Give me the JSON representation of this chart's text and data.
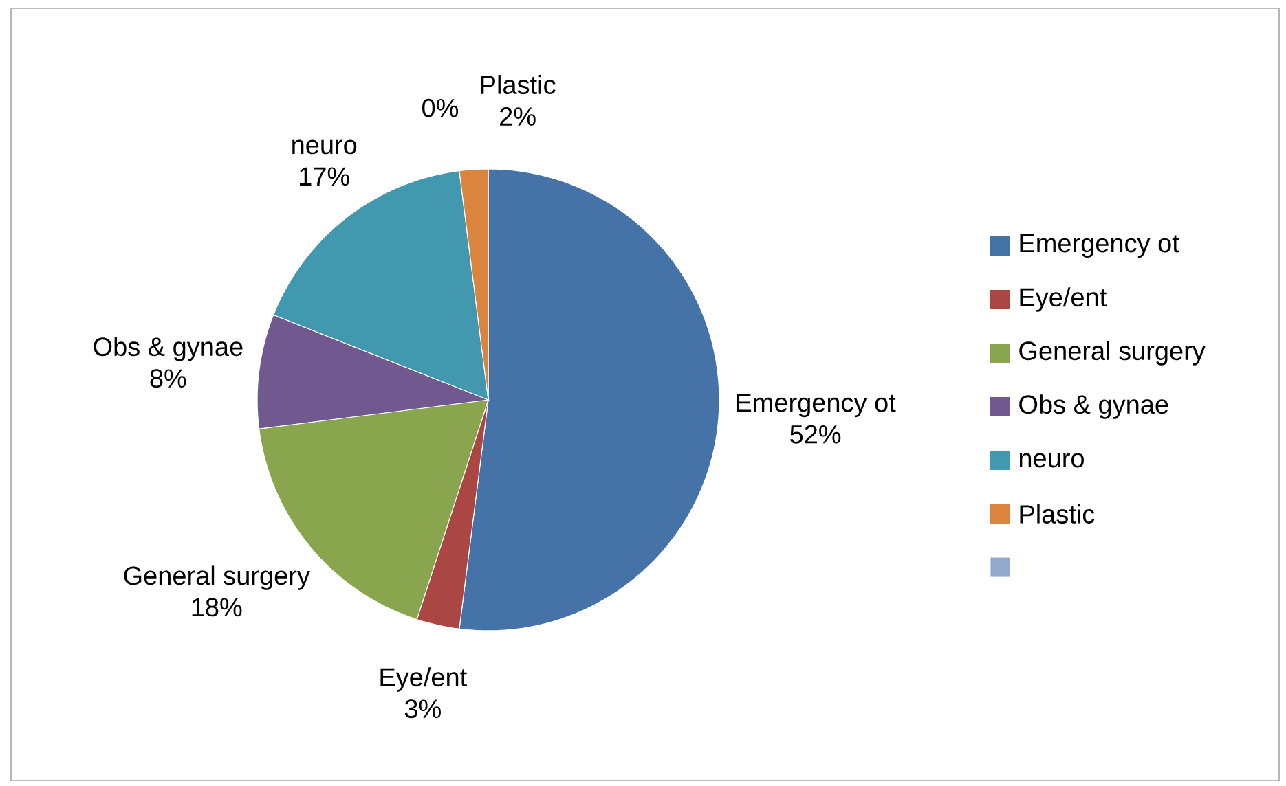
{
  "chart_data": {
    "type": "pie",
    "categories": [
      "Emergency ot",
      "Eye/ent",
      "General  surgery",
      "Obs & gynae",
      "neuro",
      "Plastic",
      null
    ],
    "values": [
      52,
      3,
      18,
      8,
      17,
      2,
      0
    ],
    "value_labels": [
      "52%",
      "3%",
      "18%",
      "8%",
      "17%",
      "2%",
      "0%"
    ],
    "colors": [
      "#4572a7",
      "#aa4643",
      "#89a54e",
      "#71588f",
      "#4198af",
      "#db843d",
      "#93a9cf"
    ],
    "legend": "right"
  }
}
